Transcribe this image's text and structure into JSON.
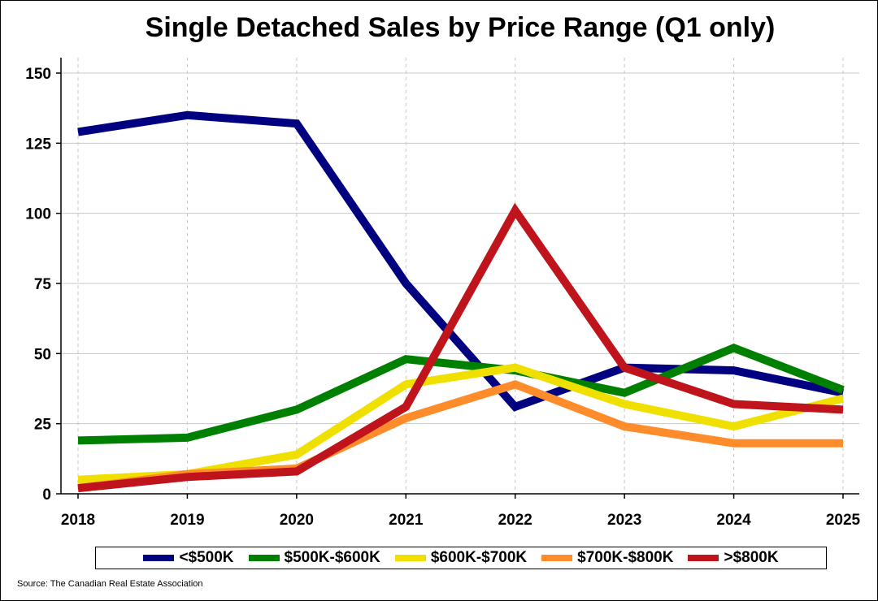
{
  "chart_data": {
    "type": "line",
    "title": "Single Detached Sales by Price Range (Q1 only)",
    "xlabel": "",
    "ylabel": "",
    "x": [
      "2018",
      "2019",
      "2020",
      "2021",
      "2022",
      "2023",
      "2024",
      "2025"
    ],
    "ylim": [
      0,
      155
    ],
    "yticks": [
      0,
      25,
      50,
      75,
      100,
      125,
      150
    ],
    "grid": true,
    "legend_position": "bottom",
    "series": [
      {
        "name": "<$500K",
        "color": "#000080",
        "values": [
          129,
          135,
          132,
          75,
          31,
          45,
          44,
          36
        ]
      },
      {
        "name": "$500K-$600K",
        "color": "#008000",
        "values": [
          19,
          20,
          30,
          48,
          44,
          36,
          52,
          37
        ]
      },
      {
        "name": "$600K-$700K",
        "color": "#f0e000",
        "values": [
          5,
          7,
          14,
          39,
          45,
          32,
          24,
          34
        ]
      },
      {
        "name": "$700K-$800K",
        "color": "#ff8c2a",
        "values": [
          2,
          7,
          9,
          27,
          39,
          24,
          18,
          18
        ]
      },
      {
        "name": ">$800K",
        "color": "#c0141c",
        "values": [
          2,
          6,
          8,
          31,
          101,
          45,
          32,
          30
        ]
      }
    ],
    "source": "Source: The Canadian Real Estate Association"
  }
}
